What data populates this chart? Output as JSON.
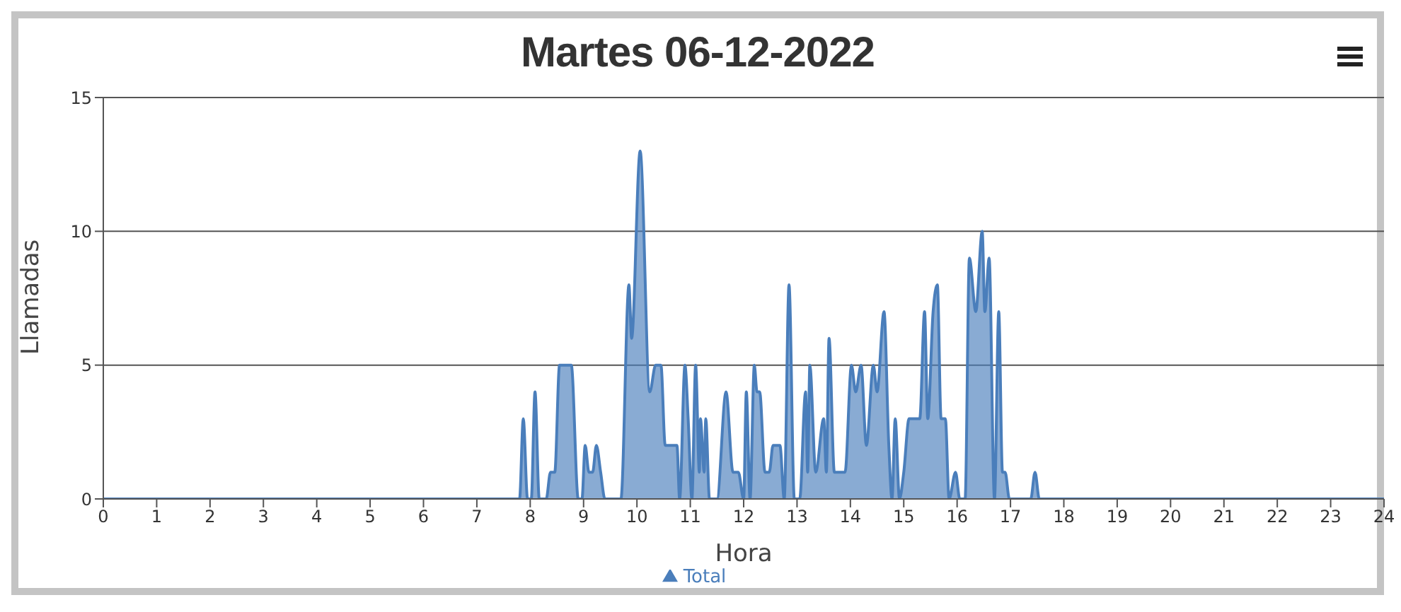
{
  "chart_data": {
    "type": "area",
    "title": "Martes 06-12-2022",
    "xlabel": "Hora",
    "ylabel": "Llamadas",
    "x": [
      0,
      7.8,
      7.87,
      7.95,
      8.02,
      8.09,
      8.17,
      8.3,
      8.38,
      8.46,
      8.55,
      8.6,
      8.7,
      8.77,
      8.9,
      8.97,
      9.03,
      9.1,
      9.17,
      9.24,
      9.32,
      9.4,
      9.7,
      9.85,
      9.9,
      10.06,
      10.24,
      10.35,
      10.45,
      10.53,
      10.75,
      10.8,
      10.9,
      10.96,
      11.03,
      11.1,
      11.17,
      11.19,
      11.26,
      11.29,
      11.36,
      11.5,
      11.67,
      11.8,
      11.9,
      12.0,
      12.05,
      12.12,
      12.2,
      12.25,
      12.3,
      12.4,
      12.48,
      12.55,
      12.68,
      12.76,
      12.85,
      12.95,
      13.05,
      13.16,
      13.2,
      13.24,
      13.35,
      13.5,
      13.55,
      13.6,
      13.7,
      13.8,
      13.9,
      14.02,
      14.1,
      14.2,
      14.3,
      14.43,
      14.5,
      14.63,
      14.72,
      14.78,
      14.84,
      14.92,
      15.0,
      15.1,
      15.2,
      15.3,
      15.39,
      15.45,
      15.55,
      15.63,
      15.7,
      15.78,
      15.85,
      15.97,
      16.05,
      16.15,
      16.23,
      16.35,
      16.47,
      16.52,
      16.6,
      16.7,
      16.78,
      16.85,
      16.9,
      16.98,
      17.38,
      17.46,
      17.54,
      24
    ],
    "series": [
      {
        "name": "Total",
        "color": "#4a7ebb",
        "values": [
          0,
          0,
          3,
          0,
          0,
          4,
          0,
          0,
          1,
          1,
          5,
          5,
          5,
          5,
          0,
          0,
          2,
          1,
          1,
          2,
          1,
          0,
          0,
          8,
          6,
          13,
          4,
          5,
          5,
          2,
          2,
          0,
          5,
          3,
          0,
          5,
          1,
          3,
          1,
          3,
          0,
          0,
          4,
          1,
          1,
          0,
          4,
          0,
          5,
          4,
          4,
          1,
          1,
          2,
          2,
          0,
          8,
          0,
          0,
          4,
          1,
          5,
          1,
          3,
          1,
          6,
          1,
          1,
          1,
          5,
          4,
          5,
          2,
          5,
          4,
          7,
          2,
          0,
          3,
          0,
          1,
          3,
          3,
          3,
          7,
          3,
          7,
          8,
          3,
          3,
          0,
          1,
          0,
          0,
          9,
          7,
          10,
          7,
          9,
          0,
          7,
          1,
          1,
          0,
          0,
          1,
          0,
          0
        ]
      }
    ],
    "xlim": [
      0,
      24
    ],
    "xticks": [
      0,
      1,
      2,
      3,
      4,
      5,
      6,
      7,
      8,
      9,
      10,
      11,
      12,
      13,
      14,
      15,
      16,
      17,
      18,
      19,
      20,
      21,
      22,
      23,
      24
    ],
    "ylim": [
      0,
      15
    ],
    "yticks": [
      0,
      5,
      10,
      15
    ],
    "grid": "y",
    "legend": "bottom",
    "marker": "none"
  }
}
